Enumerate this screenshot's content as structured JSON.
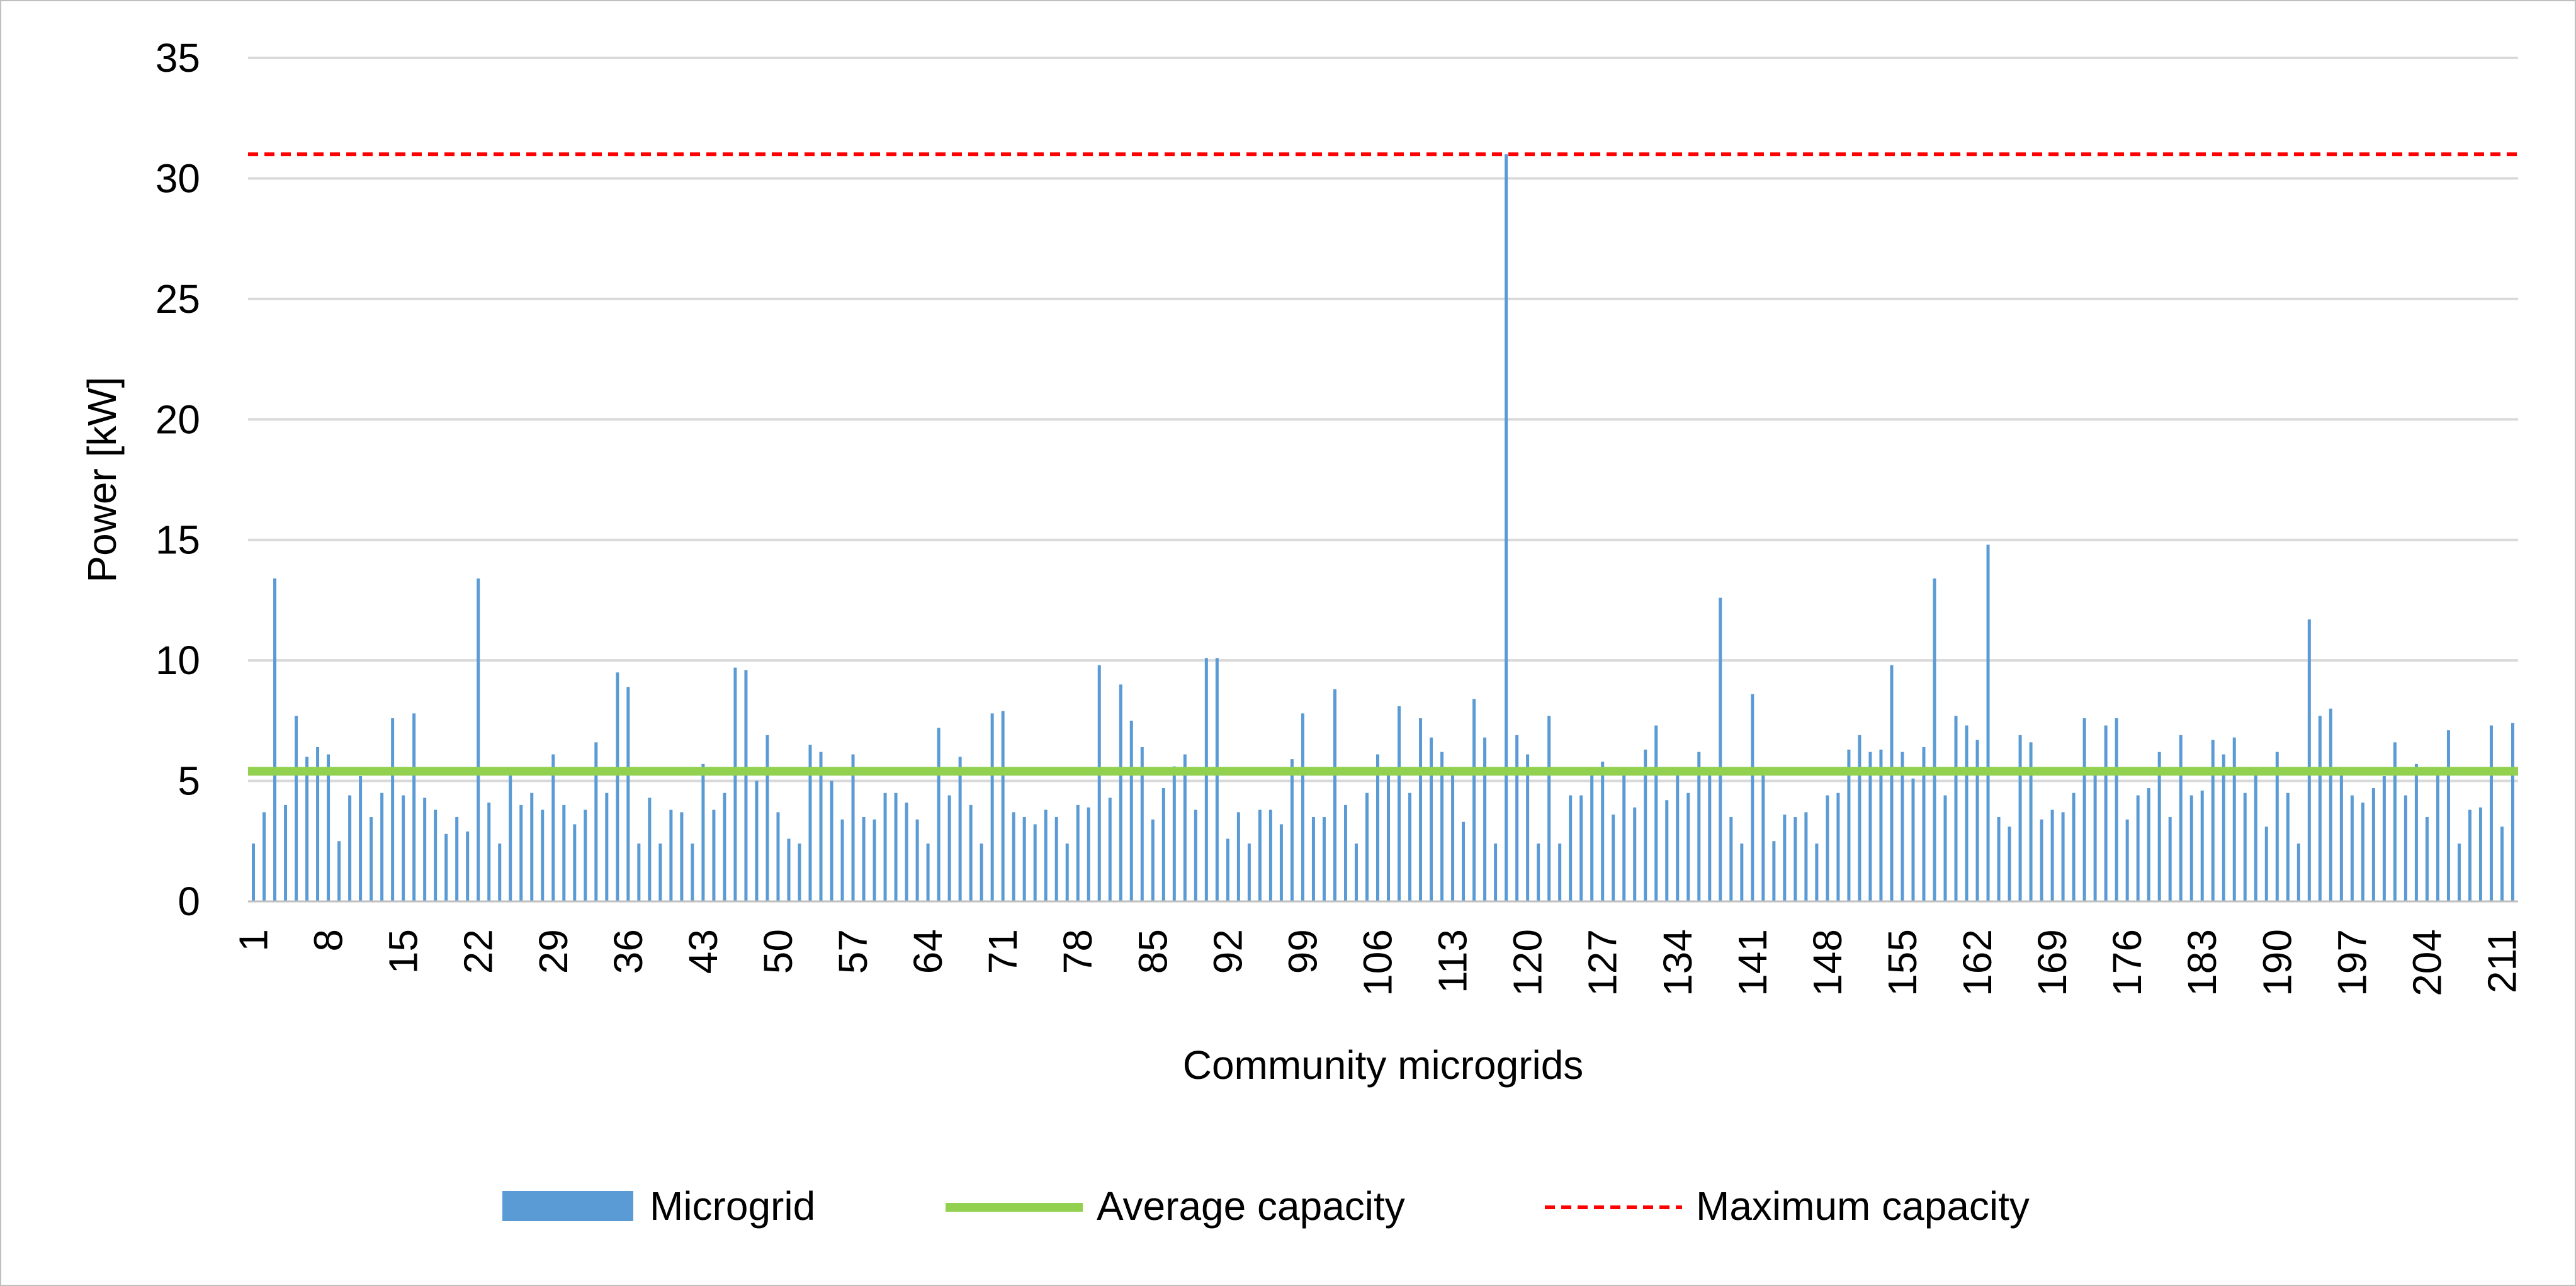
{
  "chart_data": {
    "type": "bar",
    "xlabel": "Community microgrids",
    "ylabel": "Power [kW]",
    "ylim": [
      0,
      35
    ],
    "yticks": [
      0,
      5,
      10,
      15,
      20,
      25,
      30,
      35
    ],
    "x_tick_labels": [
      "1",
      "8",
      "15",
      "22",
      "29",
      "36",
      "43",
      "50",
      "57",
      "64",
      "71",
      "78",
      "85",
      "92",
      "99",
      "106",
      "113",
      "120",
      "127",
      "134",
      "141",
      "148",
      "155",
      "162",
      "169",
      "176",
      "183",
      "190",
      "197",
      "204",
      "211"
    ],
    "grid": true,
    "legend_position": "bottom",
    "series": [
      {
        "name": "Microgrid",
        "type": "bar",
        "color": "#5b9bd5",
        "values": [
          2.4,
          3.7,
          13.4,
          4.0,
          7.7,
          6.0,
          6.4,
          6.1,
          2.5,
          4.4,
          5.2,
          3.5,
          4.5,
          7.6,
          4.4,
          7.8,
          4.3,
          3.8,
          2.8,
          3.5,
          2.9,
          13.4,
          4.1,
          2.4,
          5.3,
          4.0,
          4.5,
          3.8,
          6.1,
          4.0,
          3.2,
          3.8,
          6.6,
          4.5,
          9.5,
          8.9,
          2.4,
          4.3,
          2.4,
          3.8,
          3.7,
          2.4,
          5.7,
          3.8,
          4.5,
          9.7,
          9.6,
          5.0,
          6.9,
          3.7,
          2.6,
          2.4,
          6.5,
          6.2,
          5.0,
          3.4,
          6.1,
          3.5,
          3.4,
          4.5,
          4.5,
          4.1,
          3.4,
          2.4,
          7.2,
          4.4,
          6.0,
          4.0,
          2.4,
          7.8,
          7.9,
          3.7,
          3.5,
          3.2,
          3.8,
          3.5,
          2.4,
          4.0,
          3.9,
          9.8,
          4.3,
          9.0,
          7.5,
          6.4,
          3.4,
          4.7,
          5.6,
          6.1,
          3.8,
          10.1,
          10.1,
          2.6,
          3.7,
          2.4,
          3.8,
          3.8,
          3.2,
          5.9,
          7.8,
          3.5,
          3.5,
          8.8,
          4.0,
          2.4,
          4.5,
          6.1,
          5.4,
          8.1,
          4.5,
          7.6,
          6.8,
          6.2,
          5.3,
          3.3,
          8.4,
          6.8,
          2.4,
          31.0,
          6.9,
          6.1,
          2.4,
          7.7,
          2.4,
          4.4,
          4.4,
          5.5,
          5.8,
          3.6,
          5.4,
          3.9,
          6.3,
          7.3,
          4.2,
          5.4,
          4.5,
          6.2,
          5.4,
          12.6,
          3.5,
          2.4,
          8.6,
          5.4,
          2.5,
          3.6,
          3.5,
          3.7,
          2.4,
          4.4,
          4.5,
          6.3,
          6.9,
          6.2,
          6.3,
          9.8,
          6.2,
          5.1,
          6.4,
          13.4,
          4.4,
          7.7,
          7.3,
          6.7,
          14.8,
          3.5,
          3.1,
          6.9,
          6.6,
          3.4,
          3.8,
          3.7,
          4.5,
          7.6,
          5.4,
          7.3,
          7.6,
          3.4,
          4.4,
          4.7,
          6.2,
          3.5,
          6.9,
          4.4,
          4.6,
          6.7,
          6.1,
          6.8,
          4.5,
          5.4,
          3.1,
          6.2,
          4.5,
          2.4,
          11.7,
          7.7,
          8.0,
          5.4,
          4.4,
          4.1,
          4.7,
          5.2,
          6.6,
          4.4,
          5.7,
          3.5,
          5.4,
          7.1,
          2.4,
          3.8,
          3.9,
          7.3,
          3.1,
          7.4
        ]
      },
      {
        "name": "Average capacity",
        "type": "line",
        "color": "#92d050",
        "value": 5.4
      },
      {
        "name": "Maximum capacity",
        "type": "line",
        "style": "dashed",
        "color": "#ff0000",
        "value": 31.0
      }
    ]
  }
}
